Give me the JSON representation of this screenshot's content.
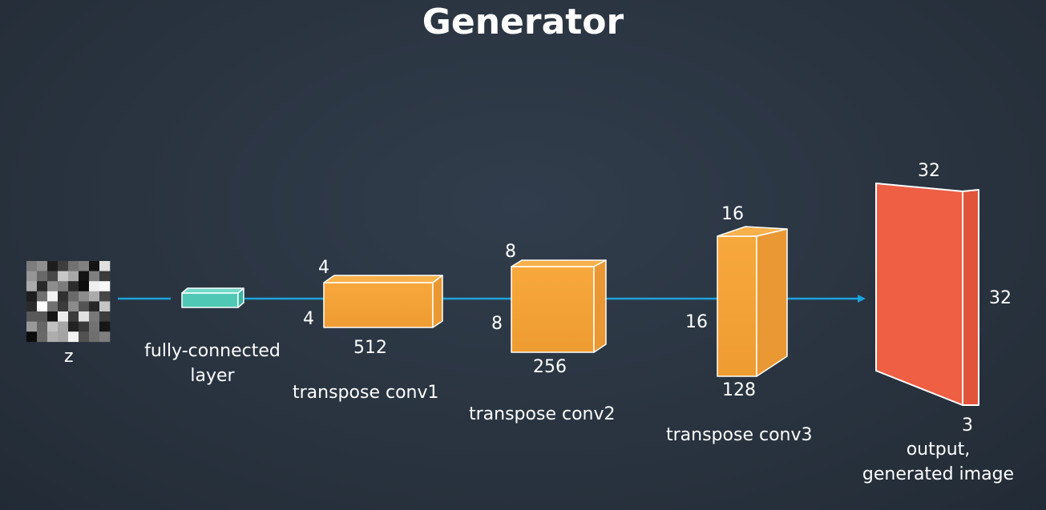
{
  "title": "Generator",
  "colors": {
    "background": "#2c3644",
    "connector": "#1aa3dd",
    "fc_layer": "#4fc9b5",
    "conv_block": "#f5a33a",
    "output_block": "#ee5f44",
    "edge": "#ffffff"
  },
  "input": {
    "label": "z",
    "icon": "noise-image"
  },
  "fc": {
    "label_line1": "fully-connected",
    "label_line2": "layer"
  },
  "conv1": {
    "name": "transpose conv1",
    "height": "4",
    "width": "4",
    "depth": "512"
  },
  "conv2": {
    "name": "transpose conv2",
    "height": "8",
    "width": "8",
    "depth": "256"
  },
  "conv3": {
    "name": "transpose conv3",
    "height": "16",
    "width": "16",
    "depth": "128"
  },
  "output": {
    "label_line1": "output,",
    "label_line2": "generated image",
    "width": "32",
    "height": "32",
    "depth": "3"
  }
}
